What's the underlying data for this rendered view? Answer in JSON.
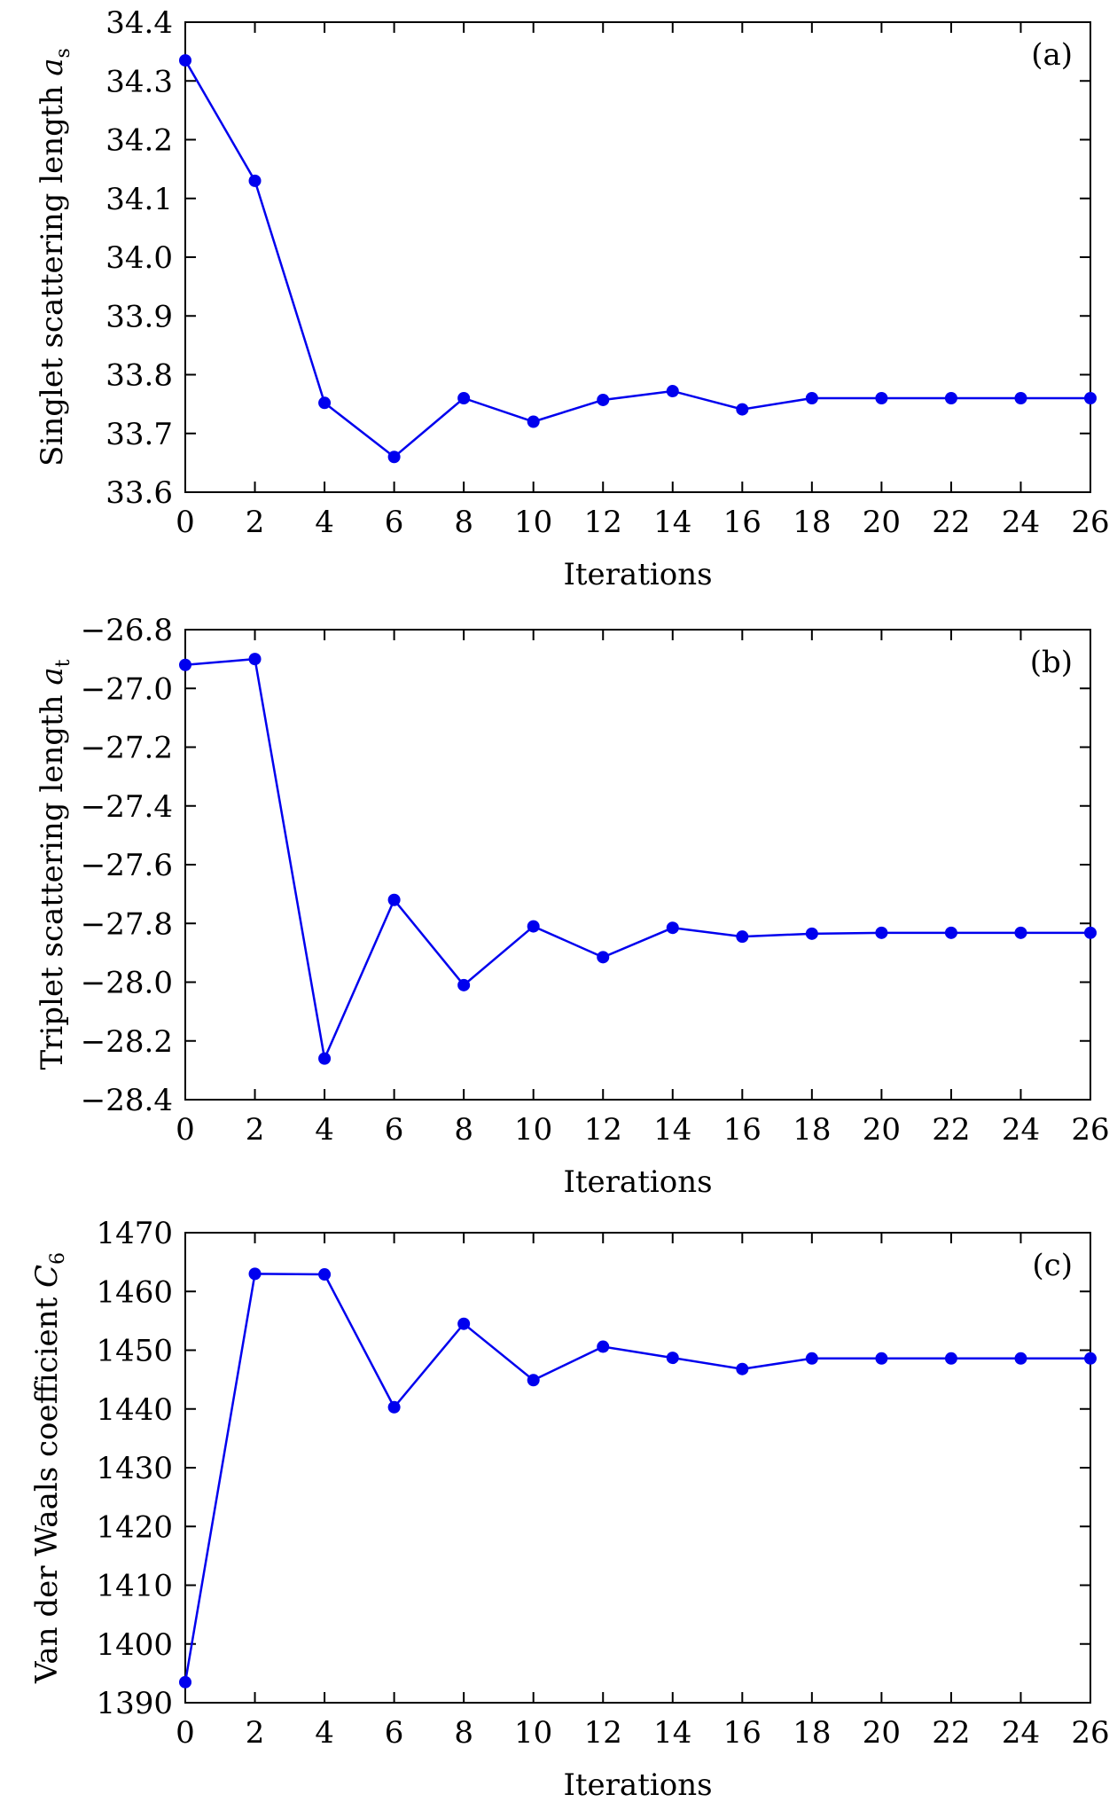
{
  "chart_data": [
    {
      "type": "line",
      "panel_label": "(a)",
      "title": "",
      "xlabel": "Iterations",
      "ylabel": {
        "text": "Singlet scattering length ",
        "symbol": "a",
        "subscript": "s"
      },
      "xlim": [
        0,
        26
      ],
      "ylim": [
        33.6,
        34.4
      ],
      "xticks": [
        0,
        2,
        4,
        6,
        8,
        10,
        12,
        14,
        16,
        18,
        20,
        22,
        24,
        26
      ],
      "yticks": [
        33.6,
        33.7,
        33.8,
        33.9,
        34.0,
        34.1,
        34.2,
        34.3,
        34.4
      ],
      "ytick_labels": [
        "33.6",
        "33.7",
        "33.8",
        "33.9",
        "34.0",
        "34.1",
        "34.2",
        "34.3",
        "34.4"
      ],
      "grid": false,
      "series_color": "#0000ee",
      "x": [
        0,
        2,
        4,
        6,
        8,
        10,
        12,
        14,
        16,
        18,
        20,
        22,
        24,
        26
      ],
      "values": [
        34.335,
        34.13,
        33.752,
        33.66,
        33.76,
        33.72,
        33.757,
        33.772,
        33.741,
        33.76,
        33.76,
        33.76,
        33.76,
        33.76
      ]
    },
    {
      "type": "line",
      "panel_label": "(b)",
      "title": "",
      "xlabel": "Iterations",
      "ylabel": {
        "text": "Triplet scattering length ",
        "symbol": "a",
        "subscript": "t"
      },
      "xlim": [
        0,
        26
      ],
      "ylim": [
        -28.4,
        -26.8
      ],
      "xticks": [
        0,
        2,
        4,
        6,
        8,
        10,
        12,
        14,
        16,
        18,
        20,
        22,
        24,
        26
      ],
      "yticks": [
        -28.4,
        -28.2,
        -28.0,
        -27.8,
        -27.6,
        -27.4,
        -27.2,
        -27.0,
        -26.8
      ],
      "ytick_labels": [
        "−28.4",
        "−28.2",
        "−28.0",
        "−27.8",
        "−27.6",
        "−27.4",
        "−27.2",
        "−27.0",
        "−26.8"
      ],
      "grid": false,
      "series_color": "#0000ee",
      "x": [
        0,
        2,
        4,
        6,
        8,
        10,
        12,
        14,
        16,
        18,
        20,
        22,
        24,
        26
      ],
      "values": [
        -26.92,
        -26.9,
        -28.26,
        -27.72,
        -28.01,
        -27.81,
        -27.915,
        -27.815,
        -27.845,
        -27.835,
        -27.832,
        -27.832,
        -27.832,
        -27.832
      ]
    },
    {
      "type": "line",
      "panel_label": "(c)",
      "title": "",
      "xlabel": "Iterations",
      "ylabel": {
        "text": "Van der Waals coefficient ",
        "symbol": "C",
        "subscript": "6"
      },
      "xlim": [
        0,
        26
      ],
      "ylim": [
        1390,
        1470
      ],
      "xticks": [
        0,
        2,
        4,
        6,
        8,
        10,
        12,
        14,
        16,
        18,
        20,
        22,
        24,
        26
      ],
      "yticks": [
        1390,
        1400,
        1410,
        1420,
        1430,
        1440,
        1450,
        1460,
        1470
      ],
      "ytick_labels": [
        "1390",
        "1400",
        "1410",
        "1420",
        "1430",
        "1440",
        "1450",
        "1460",
        "1470"
      ],
      "grid": false,
      "series_color": "#0000ee",
      "x": [
        0,
        2,
        4,
        6,
        8,
        10,
        12,
        14,
        16,
        18,
        20,
        22,
        24,
        26
      ],
      "values": [
        1393.5,
        1463.0,
        1462.9,
        1440.3,
        1454.5,
        1444.9,
        1450.6,
        1448.7,
        1446.8,
        1448.6,
        1448.6,
        1448.6,
        1448.6,
        1448.6
      ]
    }
  ]
}
